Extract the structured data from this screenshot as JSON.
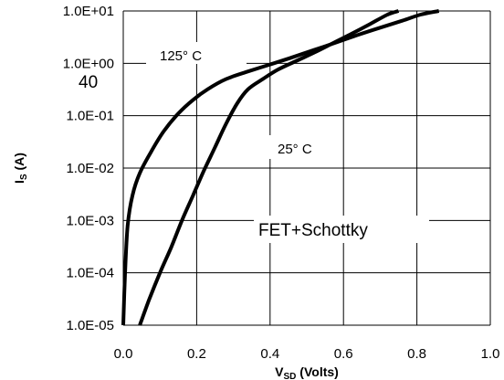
{
  "chart_data": {
    "type": "line",
    "title": "",
    "xlabel": "V",
    "xlabel_sub": "SD",
    "xlabel_unit": " (Volts)",
    "ylabel": "I",
    "ylabel_sub": "S",
    "ylabel_unit": " (A)",
    "xlim": [
      0.0,
      1.0
    ],
    "ylim": [
      1e-05,
      10
    ],
    "yscale": "log",
    "grid": true,
    "x_ticks": [
      "0.0",
      "0.2",
      "0.4",
      "0.6",
      "0.8",
      "1.0"
    ],
    "y_ticks": [
      "1.0E-05",
      "1.0E-04",
      "1.0E-03",
      "1.0E-02",
      "1.0E-01",
      "1.0E+00",
      "1.0E+01"
    ],
    "series": [
      {
        "name": "125° C",
        "x": [
          0.0,
          0.005,
          0.012,
          0.025,
          0.045,
          0.075,
          0.11,
          0.15,
          0.19,
          0.23,
          0.28,
          0.34,
          0.4,
          0.46,
          0.52,
          0.58,
          0.64,
          0.7,
          0.76,
          0.81,
          0.86
        ],
        "y": [
          1e-05,
          0.0001,
          0.0008,
          0.003,
          0.008,
          0.02,
          0.05,
          0.11,
          0.2,
          0.32,
          0.5,
          0.7,
          0.95,
          1.3,
          1.8,
          2.5,
          3.5,
          4.8,
          6.5,
          8.5,
          10
        ]
      },
      {
        "name": "25° C",
        "x": [
          0.045,
          0.07,
          0.1,
          0.13,
          0.16,
          0.19,
          0.22,
          0.25,
          0.28,
          0.31,
          0.34,
          0.38,
          0.42,
          0.47,
          0.52,
          0.57,
          0.62,
          0.67,
          0.72,
          0.75
        ],
        "y": [
          1e-05,
          3e-05,
          0.0001,
          0.0003,
          0.001,
          0.003,
          0.009,
          0.025,
          0.07,
          0.17,
          0.32,
          0.5,
          0.75,
          1.1,
          1.6,
          2.4,
          3.6,
          5.5,
          8.5,
          10
        ]
      }
    ],
    "annotations": {
      "t125": "125° C",
      "t25": "25° C",
      "device": "FET+Schottky",
      "stray": "40"
    }
  }
}
